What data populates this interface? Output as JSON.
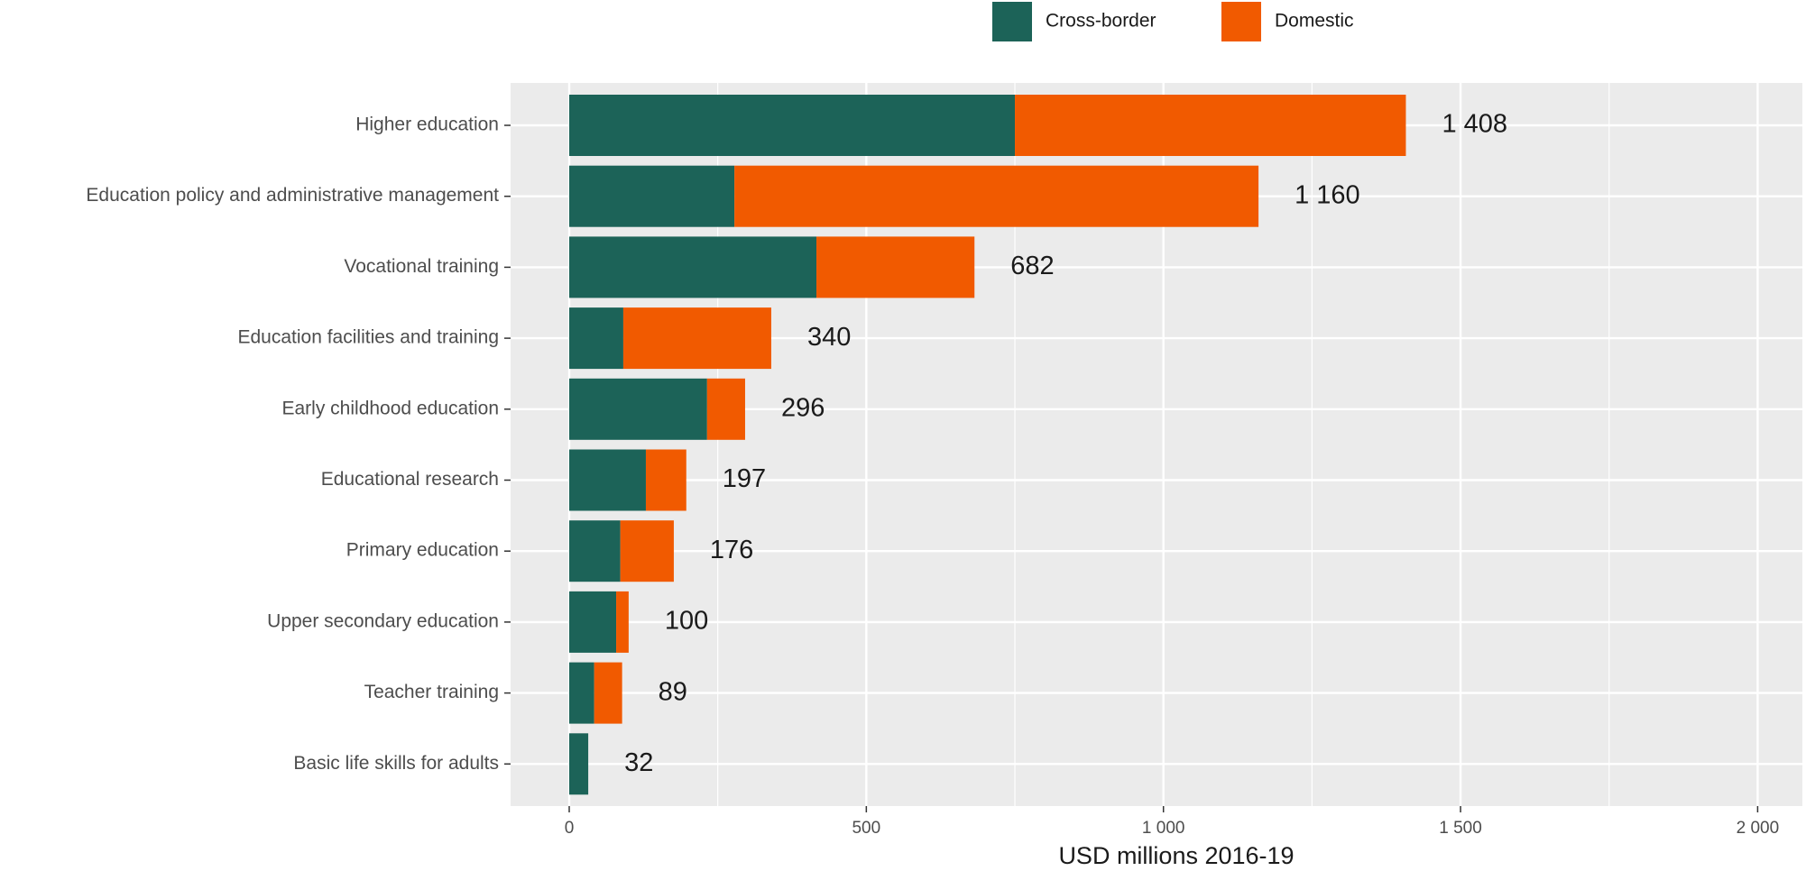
{
  "chart_data": {
    "type": "bar",
    "orientation": "horizontal",
    "stacked": true,
    "categories": [
      "Higher education",
      "Education policy and administrative management",
      "Vocational training",
      "Education facilities and training",
      "Early childhood education",
      "Educational research",
      "Primary education",
      "Upper secondary education",
      "Teacher training",
      "Basic life skills for adults"
    ],
    "series": [
      {
        "name": "Cross-border",
        "color": "#1c6358",
        "values": [
          750,
          278,
          416,
          91,
          232,
          129,
          86,
          79,
          42,
          32
        ]
      },
      {
        "name": "Domestic",
        "color": "#f15a00",
        "values": [
          658,
          882,
          266,
          249,
          64,
          68,
          90,
          21,
          47,
          0
        ]
      }
    ],
    "totals": [
      1408,
      1160,
      682,
      340,
      296,
      197,
      176,
      100,
      89,
      32
    ],
    "total_labels": [
      "1 408",
      "1 160",
      "682",
      "340",
      "296",
      "197",
      "176",
      "100",
      "89",
      "32"
    ],
    "xlabel": "USD millions 2016-19",
    "xlim": [
      0,
      2050
    ],
    "xticks": [
      0,
      500,
      1000,
      1500,
      2000
    ],
    "xtick_labels": [
      "0",
      "500",
      "1 000",
      "1 500",
      "2 000"
    ],
    "grid": true,
    "legend_position": "top",
    "background": "#ebebeb",
    "grid_color": "#ffffff"
  }
}
